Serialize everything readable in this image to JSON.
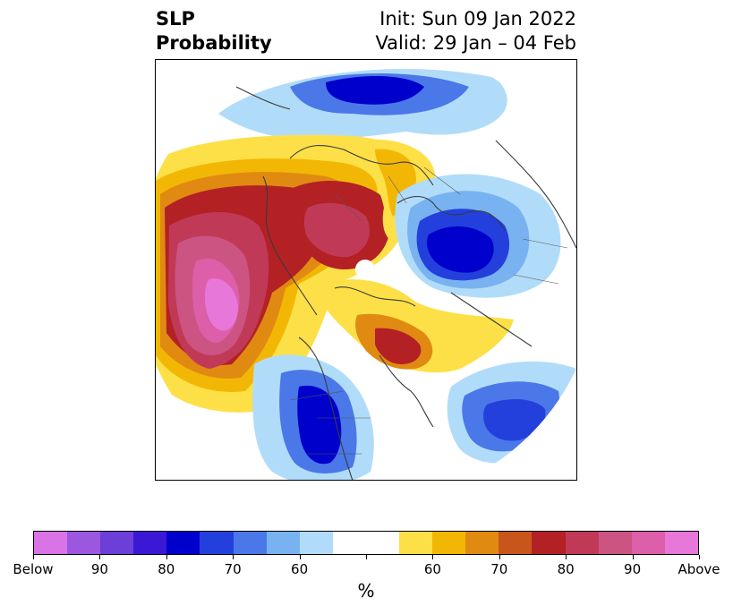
{
  "title": {
    "left_line1": "SLP",
    "left_line2": "Probability",
    "right_line1": "Init: Sun 09 Jan 2022",
    "right_line2": "Valid: 29 Jan – 04 Feb"
  },
  "colorbar": {
    "unit": "%",
    "colors": [
      "#d973e6",
      "#9b57e0",
      "#6b3fd8",
      "#3b18d6",
      "#0000cd",
      "#2340dc",
      "#4a78e8",
      "#78b2f0",
      "#b1dcf9",
      "#ffffff",
      "#ffffff",
      "#fde047",
      "#f2b705",
      "#e08a12",
      "#c8561a",
      "#b32125",
      "#c03a57",
      "#cc5482",
      "#dd5ea9",
      "#e777d9"
    ],
    "tick_labels": [
      "Below",
      "90",
      "80",
      "70",
      "60",
      "",
      "60",
      "70",
      "80",
      "90",
      "Above"
    ]
  },
  "map": {
    "projection": "north-polar-stereographic",
    "icons": [
      "coastline-overlay",
      "border-overlay",
      "pole-marker"
    ]
  }
}
